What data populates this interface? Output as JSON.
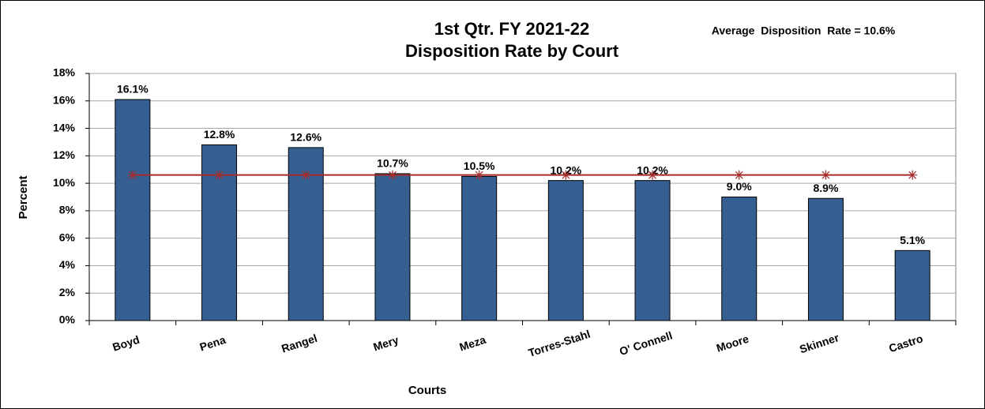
{
  "chart_data": {
    "type": "bar",
    "title": "1st Qtr. FY 2021-22",
    "subtitle": "Disposition Rate by Court",
    "annotation": "Average  Disposition  Rate = 10.6%",
    "x_label": "Courts",
    "y_label": "Percent",
    "categories": [
      "Boyd",
      "Pena",
      "Rangel",
      "Mery",
      "Meza",
      "Torres-Stahl",
      "O' Connell",
      "Moore",
      "Skinner",
      "Castro"
    ],
    "values": [
      16.1,
      12.8,
      12.6,
      10.7,
      10.5,
      10.2,
      10.2,
      9.0,
      8.9,
      5.1
    ],
    "value_labels": [
      "16.1%",
      "12.8%",
      "12.6%",
      "10.7%",
      "10.5%",
      "10.2%",
      "10.2%",
      "9.0%",
      "8.9%",
      "5.1%"
    ],
    "color": "#365f91",
    "reference_line": {
      "values": [
        10.6,
        10.6,
        10.6,
        10.6,
        10.6,
        10.6,
        10.6,
        10.6,
        10.6,
        10.6
      ],
      "color": "#a52a2a"
    },
    "ylim": [
      0,
      18
    ],
    "yticks": [
      {
        "value": 0,
        "label": "0%"
      },
      {
        "value": 2,
        "label": "2%"
      },
      {
        "value": 4,
        "label": "4%"
      },
      {
        "value": 6,
        "label": "6%"
      },
      {
        "value": 8,
        "label": "8%"
      },
      {
        "value": 10,
        "label": "10%"
      },
      {
        "value": 12,
        "label": "12%"
      },
      {
        "value": 14,
        "label": "14%"
      },
      {
        "value": 16,
        "label": "16%"
      },
      {
        "value": 18,
        "label": "18%"
      }
    ],
    "grid": true
  }
}
